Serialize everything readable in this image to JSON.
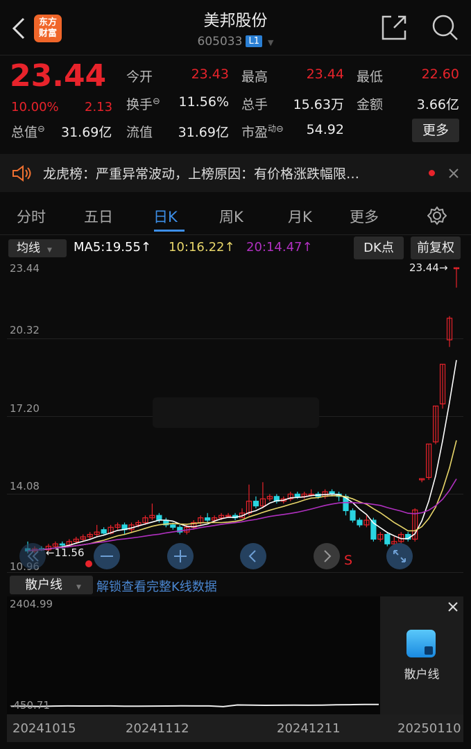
{
  "header": {
    "title": "美邦股份",
    "code": "605033",
    "level_badge": "L1",
    "logo_text": [
      "东方",
      "财富"
    ]
  },
  "quote": {
    "price": "23.44",
    "change_pct": "10.00%",
    "change": "2.13",
    "fields": [
      {
        "label": "今开",
        "value": "23.43",
        "color": "red"
      },
      {
        "label": "最高",
        "value": "23.44",
        "color": "red"
      },
      {
        "label": "最低",
        "value": "22.60",
        "color": "red"
      },
      {
        "label": "换手",
        "value": "11.56%",
        "color": "white"
      },
      {
        "label": "总手",
        "value": "15.63万",
        "color": "white"
      },
      {
        "label": "金额",
        "value": "3.66亿",
        "color": "white"
      },
      {
        "label": "总值",
        "value": "31.69亿",
        "color": "white"
      },
      {
        "label": "流值",
        "value": "31.69亿",
        "color": "white"
      },
      {
        "label": "市盈",
        "label_sup": "动",
        "value": "54.92",
        "color": "white"
      }
    ],
    "more_label": "更多"
  },
  "notice": {
    "text": "龙虎榜：严重异常波动，上榜原因：有价格涨跌幅限…"
  },
  "tabs": [
    {
      "label": "分时"
    },
    {
      "label": "五日"
    },
    {
      "label": "日K",
      "active": true
    },
    {
      "label": "周K"
    },
    {
      "label": "月K"
    },
    {
      "label": "更多"
    }
  ],
  "chart_toolbar": {
    "indicator": "均线",
    "ma5": "MA5:19.55↑",
    "ma10": "10:16.22↑",
    "ma20": "20:14.47↑",
    "dk": "DK点",
    "adjust": "前复权"
  },
  "chart_data": {
    "type": "candlestick",
    "y_ticks": [
      "23.44",
      "20.32",
      "17.20",
      "14.08",
      "10.96"
    ],
    "ylim": [
      10.96,
      23.44
    ],
    "max_label": "23.44→",
    "min_label": "←11.56",
    "signal_label": "S",
    "colors": {
      "up": "#e8232b",
      "down": "#2ad4e0",
      "ma5": "#ffffff",
      "ma10": "#e8d66a",
      "ma20": "#b030c0"
    },
    "ohlc": [
      [
        11.6,
        11.9,
        11.4,
        11.5
      ],
      [
        11.5,
        11.7,
        11.4,
        11.6
      ],
      [
        11.6,
        11.7,
        11.5,
        11.55
      ],
      [
        11.55,
        11.8,
        11.5,
        11.7
      ],
      [
        11.7,
        11.9,
        11.6,
        11.8
      ],
      [
        11.8,
        11.9,
        11.6,
        11.75
      ],
      [
        11.75,
        12.0,
        11.7,
        11.9
      ],
      [
        11.9,
        12.1,
        11.8,
        12.0
      ],
      [
        12.0,
        12.2,
        11.9,
        12.1
      ],
      [
        12.1,
        12.3,
        12.0,
        12.2
      ],
      [
        12.2,
        12.6,
        12.1,
        12.3
      ],
      [
        12.4,
        12.5,
        12.2,
        12.25
      ],
      [
        12.25,
        12.6,
        12.2,
        12.5
      ],
      [
        12.5,
        12.7,
        12.4,
        12.6
      ],
      [
        12.6,
        12.7,
        12.2,
        12.4
      ],
      [
        12.4,
        12.7,
        12.3,
        12.6
      ],
      [
        12.6,
        12.8,
        12.5,
        12.7
      ],
      [
        12.7,
        13.0,
        12.6,
        12.9
      ],
      [
        12.9,
        13.5,
        12.8,
        13.0
      ],
      [
        13.0,
        13.1,
        12.7,
        12.8
      ],
      [
        12.8,
        12.9,
        12.5,
        12.6
      ],
      [
        12.6,
        12.7,
        12.4,
        12.5
      ],
      [
        12.5,
        12.6,
        12.2,
        12.3
      ],
      [
        12.3,
        12.6,
        12.2,
        12.5
      ],
      [
        12.5,
        12.8,
        12.4,
        12.7
      ],
      [
        12.7,
        13.0,
        12.6,
        12.9
      ],
      [
        12.9,
        13.1,
        12.7,
        12.8
      ],
      [
        12.8,
        13.0,
        12.7,
        12.9
      ],
      [
        12.9,
        13.1,
        12.8,
        13.0
      ],
      [
        13.0,
        13.1,
        12.9,
        13.0
      ],
      [
        13.0,
        13.1,
        12.8,
        12.9
      ],
      [
        12.9,
        13.3,
        12.9,
        13.1
      ],
      [
        13.1,
        14.3,
        13.0,
        13.6
      ],
      [
        13.6,
        13.8,
        13.3,
        13.4
      ],
      [
        13.4,
        14.4,
        13.3,
        13.7
      ],
      [
        13.7,
        13.9,
        13.6,
        13.8
      ],
      [
        13.8,
        13.9,
        13.5,
        13.6
      ],
      [
        13.6,
        13.8,
        13.5,
        13.7
      ],
      [
        13.7,
        14.0,
        13.6,
        13.9
      ],
      [
        13.9,
        14.0,
        13.7,
        13.8
      ],
      [
        13.8,
        14.0,
        13.7,
        13.9
      ],
      [
        13.9,
        14.1,
        13.8,
        13.9
      ],
      [
        13.9,
        14.0,
        13.7,
        13.8
      ],
      [
        13.8,
        14.1,
        13.7,
        14.0
      ],
      [
        14.0,
        14.1,
        13.8,
        13.9
      ],
      [
        13.9,
        14.0,
        13.6,
        13.8
      ],
      [
        13.8,
        13.9,
        13.0,
        13.2
      ],
      [
        13.2,
        13.3,
        12.7,
        12.8
      ],
      [
        12.8,
        12.9,
        12.5,
        12.6
      ],
      [
        12.6,
        13.0,
        12.5,
        12.8
      ],
      [
        12.8,
        12.9,
        11.9,
        12.0
      ],
      [
        12.0,
        12.3,
        11.9,
        12.2
      ],
      [
        12.2,
        12.3,
        11.7,
        11.8
      ],
      [
        11.8,
        12.1,
        11.7,
        11.9
      ],
      [
        11.9,
        12.3,
        11.8,
        12.2
      ],
      [
        12.2,
        12.3,
        11.9,
        12.0
      ],
      [
        12.0,
        13.3,
        11.9,
        13.23
      ],
      [
        14.5,
        14.55,
        14.4,
        14.55
      ],
      [
        14.6,
        16.01,
        14.5,
        16.01
      ],
      [
        16.1,
        17.61,
        16.0,
        17.61
      ],
      [
        17.7,
        19.37,
        17.5,
        19.37
      ],
      [
        20.4,
        21.4,
        20.1,
        21.31
      ],
      [
        23.43,
        23.44,
        22.6,
        23.44
      ]
    ]
  },
  "sub_panel": {
    "indicator": "散户线",
    "unlock_text": "解锁查看完整K线数据",
    "y_max": "2404.99",
    "y_min": "-450.71",
    "overlay_label": "散户线",
    "line": [
      -420,
      -418,
      -425,
      -415,
      -412,
      -414,
      -413,
      -412,
      -416,
      -418,
      -415,
      -413,
      -410,
      -411,
      -412,
      -430,
      -385,
      -388,
      -395,
      -393,
      -390,
      -392,
      -388,
      -380,
      -378,
      -372,
      -370
    ],
    "dates": [
      "20241015",
      "20241112",
      "20241211",
      "20250110"
    ]
  }
}
